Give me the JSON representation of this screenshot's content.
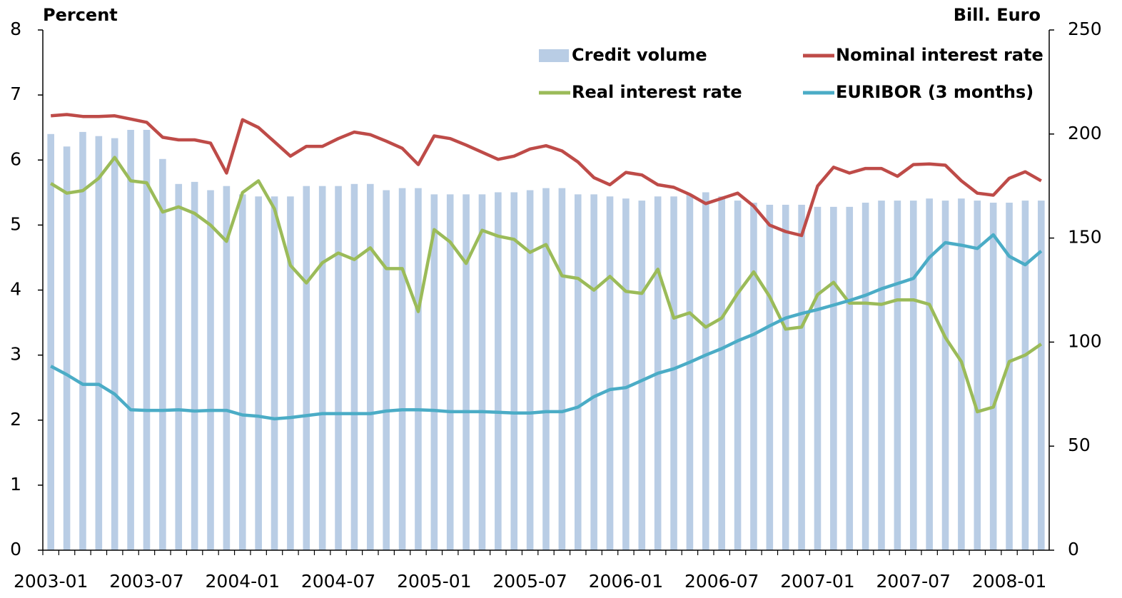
{
  "chart_data": {
    "type": "combo",
    "y_label": "Percent",
    "y2_label": "Bill. Euro",
    "categories": [
      "2003-01",
      null,
      null,
      null,
      null,
      null,
      "2003-07",
      null,
      null,
      null,
      null,
      null,
      "2004-01",
      null,
      null,
      null,
      null,
      null,
      "2004-07",
      null,
      null,
      null,
      null,
      null,
      "2005-01",
      null,
      null,
      null,
      null,
      null,
      "2005-07",
      null,
      null,
      null,
      null,
      null,
      "2006-01",
      null,
      null,
      null,
      null,
      null,
      "2006-07",
      null,
      null,
      null,
      null,
      null,
      "2007-01",
      null,
      null,
      null,
      null,
      null,
      "2007-07",
      null,
      null,
      null,
      null,
      null,
      "2008-01",
      null,
      null
    ],
    "ylim": [
      0,
      8
    ],
    "yticks": [
      0,
      1,
      2,
      3,
      4,
      5,
      6,
      7,
      8
    ],
    "y2lim": [
      0,
      250
    ],
    "y2ticks": [
      0,
      50,
      100,
      150,
      200,
      250
    ],
    "legend": "top-right",
    "series": [
      {
        "name": "Credit volume",
        "type": "bar",
        "axis": "y2",
        "color": "#b9cde5",
        "values": [
          200,
          194,
          201,
          199,
          198,
          202,
          202,
          188,
          176,
          177,
          173,
          175,
          171,
          170,
          170,
          170,
          175,
          175,
          175,
          176,
          176,
          173,
          174,
          174,
          171,
          171,
          171,
          171,
          172,
          172,
          173,
          174,
          174,
          171,
          171,
          170,
          169,
          168,
          170,
          170,
          171,
          172,
          170,
          168,
          167,
          166,
          166,
          166,
          165,
          165,
          165,
          167,
          168,
          168,
          168,
          169,
          168,
          169,
          168,
          167,
          167,
          168,
          168
        ]
      },
      {
        "name": "Nominal interest rate",
        "type": "line",
        "color": "#be4b48",
        "values": [
          6.68,
          6.7,
          6.67,
          6.67,
          6.68,
          6.63,
          6.58,
          6.35,
          6.31,
          6.31,
          6.26,
          5.8,
          6.62,
          6.5,
          6.28,
          6.06,
          6.21,
          6.21,
          6.33,
          6.43,
          6.39,
          6.29,
          6.18,
          5.93,
          6.37,
          6.33,
          6.23,
          6.12,
          6.01,
          6.06,
          6.17,
          6.22,
          6.14,
          5.97,
          5.73,
          5.62,
          5.81,
          5.77,
          5.62,
          5.58,
          5.47,
          5.33,
          5.41,
          5.49,
          5.29,
          5.0,
          4.9,
          4.84,
          5.6,
          5.89,
          5.8,
          5.87,
          5.87,
          5.75,
          5.93,
          5.94,
          5.92,
          5.68,
          5.49,
          5.46,
          5.72,
          5.82,
          5.68
        ]
      },
      {
        "name": "Real interest rate",
        "type": "line",
        "color": "#9bbb59",
        "values": [
          5.64,
          5.49,
          5.53,
          5.72,
          6.04,
          5.68,
          5.65,
          5.2,
          5.28,
          5.18,
          5.0,
          4.75,
          5.5,
          5.68,
          5.25,
          4.38,
          4.11,
          4.42,
          4.57,
          4.47,
          4.65,
          4.33,
          4.33,
          3.67,
          4.93,
          4.74,
          4.41,
          4.92,
          4.83,
          4.78,
          4.58,
          4.7,
          4.22,
          4.18,
          4.0,
          4.21,
          3.98,
          3.95,
          4.32,
          3.57,
          3.65,
          3.43,
          3.57,
          3.95,
          4.28,
          3.9,
          3.4,
          3.43,
          3.93,
          4.12,
          3.8,
          3.8,
          3.78,
          3.85,
          3.85,
          3.78,
          3.27,
          2.9,
          2.13,
          2.2,
          2.9,
          3.0,
          3.17
        ]
      },
      {
        "name": "EURIBOR (3 months)",
        "type": "line",
        "color": "#4bacc6",
        "values": [
          2.83,
          2.7,
          2.55,
          2.55,
          2.4,
          2.16,
          2.15,
          2.15,
          2.16,
          2.14,
          2.15,
          2.15,
          2.08,
          2.06,
          2.02,
          2.04,
          2.07,
          2.1,
          2.1,
          2.1,
          2.1,
          2.14,
          2.16,
          2.16,
          2.15,
          2.13,
          2.13,
          2.13,
          2.12,
          2.11,
          2.11,
          2.13,
          2.13,
          2.2,
          2.36,
          2.47,
          2.5,
          2.61,
          2.72,
          2.79,
          2.89,
          3.0,
          3.1,
          3.22,
          3.32,
          3.45,
          3.57,
          3.64,
          3.7,
          3.77,
          3.84,
          3.92,
          4.02,
          4.1,
          4.18,
          4.5,
          4.73,
          4.69,
          4.64,
          4.85,
          4.52,
          4.39,
          4.6
        ]
      }
    ]
  }
}
